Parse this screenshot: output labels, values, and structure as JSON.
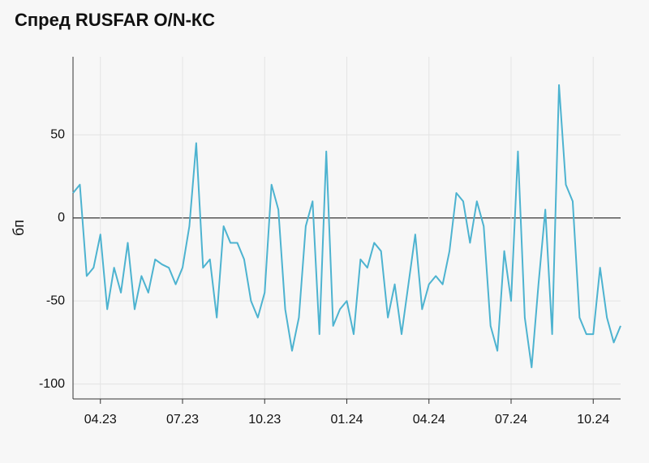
{
  "chart_data": {
    "type": "line",
    "title": "Спред RUSFAR O/N-КС",
    "y_label": "бп",
    "categories": [
      null,
      null,
      null,
      null,
      "04.23",
      null,
      null,
      null,
      null,
      null,
      null,
      null,
      null,
      null,
      null,
      null,
      "07.23",
      null,
      null,
      null,
      null,
      null,
      null,
      null,
      null,
      null,
      null,
      null,
      "10.23",
      null,
      null,
      null,
      null,
      null,
      null,
      null,
      null,
      null,
      null,
      null,
      "01.24",
      null,
      null,
      null,
      null,
      null,
      null,
      null,
      null,
      null,
      null,
      null,
      "04.24",
      null,
      null,
      null,
      null,
      null,
      null,
      null,
      null,
      null,
      null,
      null,
      "07.24",
      null,
      null,
      null,
      null,
      null,
      null,
      null,
      null,
      null,
      null,
      null,
      "10.24",
      null,
      null,
      null,
      null
    ],
    "values": [
      15,
      20,
      -35,
      -30,
      -10,
      -55,
      -30,
      -45,
      -15,
      -55,
      -35,
      -45,
      -25,
      -28,
      -30,
      -40,
      -30,
      -5,
      45,
      -30,
      -25,
      -60,
      -5,
      -15,
      -15,
      -25,
      -50,
      -60,
      -45,
      20,
      5,
      -55,
      -80,
      -60,
      -5,
      10,
      -70,
      40,
      -65,
      -55,
      -50,
      -70,
      -25,
      -30,
      -15,
      -20,
      -60,
      -40,
      -70,
      -40,
      -10,
      -55,
      -40,
      -35,
      -40,
      -20,
      15,
      10,
      -15,
      10,
      -5,
      -65,
      -80,
      -20,
      -50,
      40,
      -60,
      -90,
      -40,
      5,
      -70,
      80,
      20,
      10,
      -60,
      -70,
      -70,
      -30,
      -60,
      -75,
      -65
    ],
    "color": "#4db3d0",
    "ylim": [
      -109,
      97
    ],
    "yticks": [
      -100,
      -50,
      0,
      50
    ],
    "grid": true
  }
}
